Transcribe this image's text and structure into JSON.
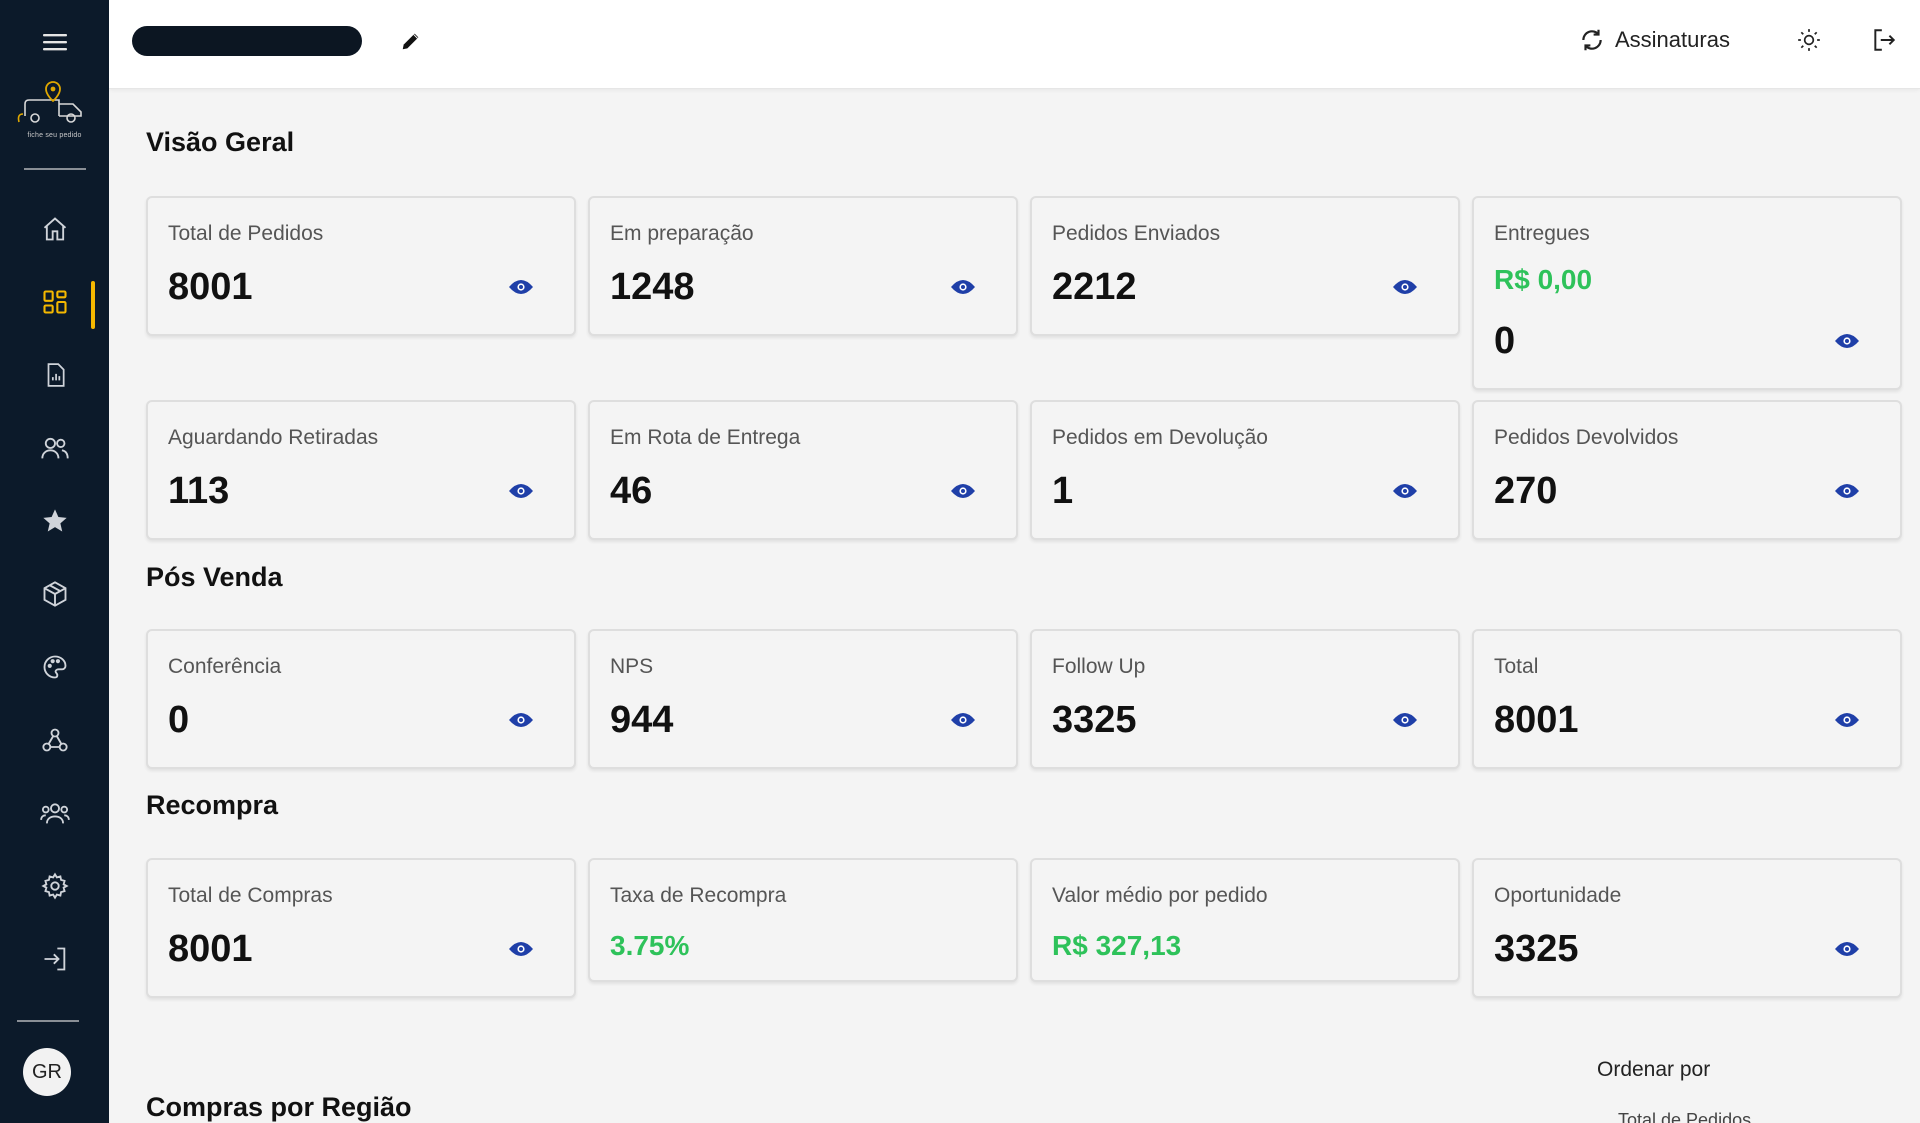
{
  "sidebar": {
    "logo_text": "fiche seu pedido",
    "avatar_initials": "GR",
    "items": [
      {
        "name": "home"
      },
      {
        "name": "dashboard",
        "active": true
      },
      {
        "name": "reports"
      },
      {
        "name": "customers"
      },
      {
        "name": "favorites"
      },
      {
        "name": "products"
      },
      {
        "name": "themes"
      },
      {
        "name": "webhooks"
      },
      {
        "name": "team"
      },
      {
        "name": "settings"
      },
      {
        "name": "login"
      }
    ]
  },
  "header": {
    "subscriptions_label": "Assinaturas"
  },
  "overview": {
    "title": "Visão Geral",
    "cards": [
      {
        "label": "Total de Pedidos",
        "value": "8001"
      },
      {
        "label": "Em preparação",
        "value": "1248"
      },
      {
        "label": "Pedidos Enviados",
        "value": "2212"
      },
      {
        "label": "Entregues",
        "money": "R$ 0,00",
        "value": "0"
      },
      {
        "label": "Aguardando Retiradas",
        "value": "113"
      },
      {
        "label": "Em Rota de Entrega",
        "value": "46"
      },
      {
        "label": "Pedidos em Devolução",
        "value": "1"
      },
      {
        "label": "Pedidos Devolvidos",
        "value": "270"
      }
    ]
  },
  "post_sale": {
    "title": "Pós Venda",
    "cards": [
      {
        "label": "Conferência",
        "value": "0"
      },
      {
        "label": "NPS",
        "value": "944"
      },
      {
        "label": "Follow Up",
        "value": "3325"
      },
      {
        "label": "Total",
        "value": "8001"
      }
    ]
  },
  "repurchase": {
    "title": "Recompra",
    "cards": [
      {
        "label": "Total de Compras",
        "value": "8001"
      },
      {
        "label": "Taxa de Recompra",
        "value": "3.75%"
      },
      {
        "label": "Valor médio por pedido",
        "value": "R$ 327,13"
      },
      {
        "label": "Oportunidade",
        "value": "3325"
      }
    ]
  },
  "region": {
    "title": "Compras por Região",
    "sort_label": "Ordenar por",
    "sort_value": "Total de Pedidos"
  },
  "colors": {
    "sidebar_bg": "#0c1a2a",
    "accent": "#f5b800",
    "money_green": "#2ec25a",
    "eye_blue": "#1f3fa8"
  }
}
